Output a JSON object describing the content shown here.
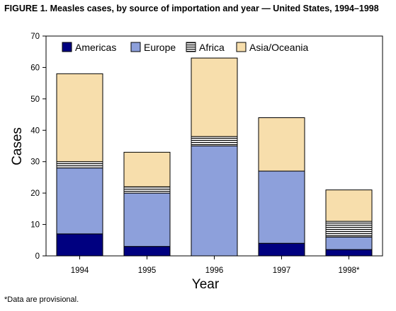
{
  "title": "FIGURE 1. Measles cases, by source of importation and year — United States, 1994–1998",
  "footnote": "*Data are provisional.",
  "chart_data": {
    "type": "bar",
    "stacked": true,
    "categories": [
      "1994",
      "1995",
      "1996",
      "1997",
      "1998*"
    ],
    "series": [
      {
        "name": "Americas",
        "values": [
          7,
          3,
          0,
          4,
          2
        ],
        "color": "#000080",
        "pattern": "solid"
      },
      {
        "name": "Europe",
        "values": [
          21,
          17,
          35,
          23,
          4
        ],
        "color": "#8DA0DB",
        "pattern": "solid"
      },
      {
        "name": "Africa",
        "values": [
          2,
          2,
          3,
          0,
          5
        ],
        "color": "#ffffff",
        "pattern": "horizontal-stripes"
      },
      {
        "name": "Asia/Oceania",
        "values": [
          28,
          11,
          25,
          17,
          10
        ],
        "color": "#F7DEAC",
        "pattern": "solid"
      }
    ],
    "xlabel": "Year",
    "ylabel": "Cases",
    "ylim": [
      0,
      70
    ],
    "yticks": [
      0,
      10,
      20,
      30,
      40,
      50,
      60,
      70
    ],
    "legend_position": "top",
    "grid": false
  }
}
